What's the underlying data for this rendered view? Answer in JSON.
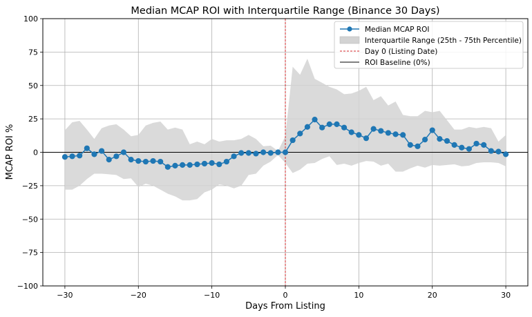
{
  "chart_data": {
    "type": "line",
    "title": "Median MCAP ROI with Interquartile Range (Binance 30 Days)",
    "xlabel": "Days From Listing",
    "ylabel": "MCAP ROI %",
    "xlim": [
      -33,
      33
    ],
    "ylim": [
      -100,
      100
    ],
    "xticks": [
      -30,
      -20,
      -10,
      0,
      10,
      20,
      30
    ],
    "yticks": [
      -100,
      -75,
      -50,
      -25,
      0,
      25,
      50,
      75,
      100
    ],
    "xtick_labels": [
      "−30",
      "−20",
      "−10",
      "0",
      "10",
      "20",
      "30"
    ],
    "ytick_labels": [
      "−100",
      "−75",
      "−50",
      "−25",
      "0",
      "25",
      "50",
      "75",
      "100"
    ],
    "grid": true,
    "legend_position": "top-right",
    "x": [
      -30,
      -29,
      -28,
      -27,
      -26,
      -25,
      -24,
      -23,
      -22,
      -21,
      -20,
      -19,
      -18,
      -17,
      -16,
      -15,
      -14,
      -13,
      -12,
      -11,
      -10,
      -9,
      -8,
      -7,
      -6,
      -5,
      -4,
      -3,
      -2,
      -1,
      0,
      1,
      2,
      3,
      4,
      5,
      6,
      7,
      8,
      9,
      10,
      11,
      12,
      13,
      14,
      15,
      16,
      17,
      18,
      19,
      20,
      21,
      22,
      23,
      24,
      25,
      26,
      27,
      28,
      29,
      30
    ],
    "series": [
      {
        "name": "Median MCAP ROI",
        "color": "#1f77b4",
        "values": [
          -3.5,
          -3,
          -2.5,
          3,
          -1.5,
          1,
          -5.5,
          -3,
          0,
          -5.5,
          -6.5,
          -7,
          -6.5,
          -7,
          -11,
          -10,
          -9.5,
          -9.5,
          -9,
          -8.5,
          -8,
          -9,
          -7,
          -3,
          -0.5,
          -0.5,
          -1,
          0,
          -0.5,
          0,
          0,
          9,
          14,
          19,
          24.5,
          18.5,
          21,
          21,
          18.5,
          15,
          13,
          10.5,
          17.5,
          16,
          14.5,
          13.5,
          13,
          5.5,
          4.5,
          9.5,
          16.5,
          10,
          8.5,
          5.5,
          3.5,
          2.5,
          6.5,
          5.5,
          1,
          0.5,
          -1.5
        ]
      },
      {
        "name": "Interquartile Range (25th - 75th Percentile)",
        "color": "#d3d3d3",
        "lower": [
          -28,
          -28,
          -25,
          -20,
          -16,
          -16,
          -16.5,
          -17,
          -20,
          -19.5,
          -26,
          -23.5,
          -25,
          -28,
          -31,
          -33,
          -36,
          -36,
          -35,
          -30,
          -28,
          -24,
          -25,
          -27,
          -25,
          -17,
          -16,
          -10,
          -7,
          -2,
          -8,
          -15.5,
          -13,
          -8.5,
          -8,
          -5,
          -3,
          -9.5,
          -8.5,
          -10,
          -8,
          -6.5,
          -7,
          -10,
          -8.5,
          -14.5,
          -14.5,
          -12,
          -10,
          -11.5,
          -9.5,
          -10,
          -9.5,
          -9,
          -10.5,
          -10,
          -8,
          -7.5,
          -7.5,
          -8,
          -10.5
        ],
        "upper": [
          16.5,
          22.5,
          23.5,
          17,
          10,
          18,
          20,
          21,
          17,
          12,
          13,
          20,
          22,
          23,
          17,
          18.5,
          17,
          6,
          8,
          6,
          10,
          8,
          9,
          9,
          10,
          13,
          10,
          4.5,
          5,
          1,
          12,
          64,
          58,
          70,
          55,
          52,
          49,
          47,
          43.5,
          44,
          46,
          49,
          39,
          42,
          35,
          38,
          28,
          27,
          27,
          31,
          30,
          31,
          24,
          17,
          17,
          19,
          18,
          19,
          18,
          8,
          13
        ]
      },
      {
        "name": "Day 0 (Listing Date)",
        "color": "#d62728",
        "x_value": 0
      },
      {
        "name": "ROI Baseline (0%)",
        "color": "#000000",
        "y_value": 0
      }
    ]
  }
}
